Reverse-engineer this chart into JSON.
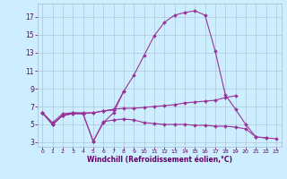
{
  "background_color": "#cceeff",
  "grid_color": "#aabbcc",
  "line_color": "#993399",
  "xlabel": "Windchill (Refroidissement éolien,°C)",
  "xlabel_color": "#660066",
  "tick_color": "#660066",
  "xlim": [
    -0.5,
    23.5
  ],
  "ylim": [
    2.5,
    18.5
  ],
  "xticks": [
    0,
    1,
    2,
    3,
    4,
    5,
    6,
    7,
    8,
    9,
    10,
    11,
    12,
    13,
    14,
    15,
    16,
    17,
    18,
    19,
    20,
    21,
    22,
    23
  ],
  "yticks": [
    3,
    5,
    7,
    9,
    11,
    13,
    15,
    17
  ],
  "curves": [
    {
      "x": [
        0,
        1,
        2,
        3,
        4,
        5,
        6,
        7,
        8,
        9,
        10,
        11,
        12,
        13,
        14,
        15,
        16,
        17,
        18,
        19,
        20,
        21,
        22
      ],
      "y": [
        6.3,
        5.0,
        6.0,
        6.3,
        6.2,
        3.1,
        5.2,
        6.3,
        8.7,
        10.5,
        12.7,
        14.9,
        16.4,
        17.2,
        17.5,
        17.7,
        17.2,
        13.2,
        8.3,
        6.7,
        5.0,
        3.6,
        3.5
      ]
    },
    {
      "x": [
        0,
        1,
        2,
        3,
        4,
        5,
        6,
        7,
        8,
        9,
        10,
        11,
        12,
        13,
        14,
        15,
        16,
        17,
        18,
        19
      ],
      "y": [
        6.3,
        5.2,
        6.2,
        6.3,
        6.3,
        6.3,
        6.5,
        6.7,
        6.8,
        6.8,
        6.9,
        7.0,
        7.1,
        7.2,
        7.4,
        7.5,
        7.6,
        7.7,
        8.0,
        8.2
      ]
    },
    {
      "x": [
        0,
        1,
        2,
        3,
        4,
        5,
        6,
        7,
        8,
        9,
        10,
        11,
        12,
        13,
        14,
        15,
        16,
        17,
        18,
        19,
        20,
        21,
        22,
        23
      ],
      "y": [
        6.3,
        5.0,
        6.0,
        6.2,
        6.2,
        3.1,
        5.3,
        5.5,
        5.6,
        5.5,
        5.2,
        5.1,
        5.0,
        5.0,
        5.0,
        4.9,
        4.9,
        4.8,
        4.8,
        4.7,
        4.5,
        3.6,
        3.5,
        3.4
      ]
    },
    {
      "x": [
        0,
        1,
        2,
        3,
        4,
        5,
        6,
        7,
        8
      ],
      "y": [
        6.3,
        5.0,
        6.0,
        6.2,
        6.2,
        6.3,
        6.5,
        6.6,
        8.7
      ]
    }
  ]
}
